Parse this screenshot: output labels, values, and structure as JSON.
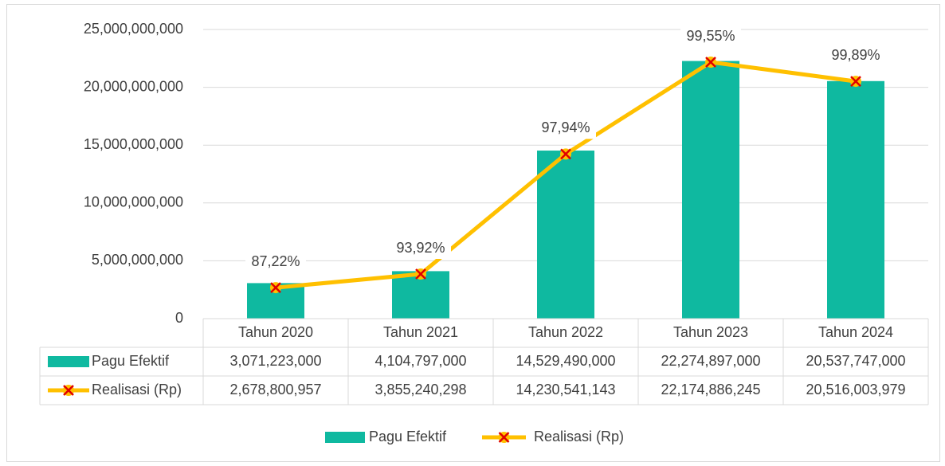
{
  "chart_data": {
    "type": "bar",
    "categories": [
      "Tahun 2020",
      "Tahun 2021",
      "Tahun 2022",
      "Tahun 2023",
      "Tahun 2024"
    ],
    "series": [
      {
        "name": "Pagu Efektif",
        "color": "#0FB9A0",
        "type": "bar",
        "values": [
          3071223000,
          4104797000,
          14529490000,
          22274897000,
          20537747000
        ],
        "value_labels": [
          "3,071,223,000",
          "4,104,797,000",
          "14,529,490,000",
          "22,274,897,000",
          "20,537,747,000"
        ]
      },
      {
        "name": "Realisasi (Rp)",
        "color": "#FFC000",
        "marker_color": "#E00000",
        "type": "line",
        "values": [
          2678800957,
          3855240298,
          14230541143,
          22174886245,
          20516003979
        ],
        "value_labels": [
          "2,678,800,957",
          "3,855,240,298",
          "14,230,541,143",
          "22,174,886,245",
          "20,516,003,979"
        ]
      }
    ],
    "annotations": [
      "87,22%",
      "93,92%",
      "97,94%",
      "99,55%",
      "99,89%"
    ],
    "ylim": [
      0,
      25000000000
    ],
    "yticks": [
      0,
      {
        "value": 5000000000,
        "label": "5,000,000,000"
      },
      {
        "value": 10000000000,
        "label": "10,000,000,000"
      },
      {
        "value": 15000000000,
        "label": "15,000,000,000"
      },
      {
        "value": 20000000000,
        "label": "20,000,000,000"
      },
      {
        "value": 25000000000,
        "label": "25,000,000,000"
      }
    ],
    "grid": true,
    "legend": "bottom"
  }
}
